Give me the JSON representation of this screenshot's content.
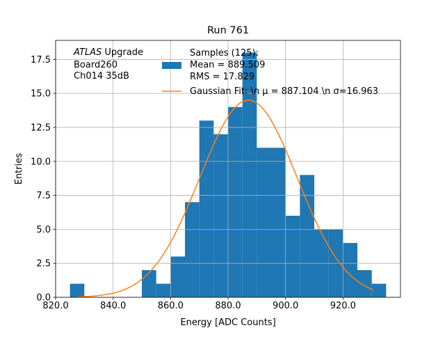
{
  "chart_data": {
    "type": "bar",
    "title": "Run 761",
    "xlabel": "Energy [ADC Counts]",
    "ylabel": "Entries",
    "xlim": [
      820,
      940
    ],
    "ylim": [
      0,
      18.9
    ],
    "grid": true,
    "bin_width": 5,
    "bins": [
      {
        "x0": 825,
        "value": 1
      },
      {
        "x0": 850,
        "value": 2
      },
      {
        "x0": 855,
        "value": 1
      },
      {
        "x0": 860,
        "value": 3
      },
      {
        "x0": 865,
        "value": 7
      },
      {
        "x0": 870,
        "value": 13
      },
      {
        "x0": 875,
        "value": 12
      },
      {
        "x0": 880,
        "value": 14
      },
      {
        "x0": 885,
        "value": 18
      },
      {
        "x0": 890,
        "value": 11
      },
      {
        "x0": 895,
        "value": 11
      },
      {
        "x0": 900,
        "value": 6
      },
      {
        "x0": 905,
        "value": 9
      },
      {
        "x0": 910,
        "value": 5
      },
      {
        "x0": 915,
        "value": 5
      },
      {
        "x0": 920,
        "value": 4
      },
      {
        "x0": 925,
        "value": 2
      },
      {
        "x0": 930,
        "value": 1
      }
    ],
    "x_ticks": [
      {
        "value": 820,
        "label": "820.0"
      },
      {
        "value": 840,
        "label": "840.0"
      },
      {
        "value": 860,
        "label": "860.0"
      },
      {
        "value": 880,
        "label": "880.0"
      },
      {
        "value": 900,
        "label": "900.0"
      },
      {
        "value": 920,
        "label": "920.0"
      }
    ],
    "y_ticks": [
      {
        "value": 0,
        "label": "0.0"
      },
      {
        "value": 2.5,
        "label": "2.5"
      },
      {
        "value": 5,
        "label": "5.0"
      },
      {
        "value": 7.5,
        "label": "7.5"
      },
      {
        "value": 10,
        "label": "10.0"
      },
      {
        "value": 12.5,
        "label": "12.5"
      },
      {
        "value": 15,
        "label": "15.0"
      },
      {
        "value": 17.5,
        "label": "17.5"
      }
    ],
    "fit": {
      "type": "gaussian",
      "mu": 887.104,
      "sigma": 16.963,
      "amplitude": 14.5,
      "x_range": [
        827.5,
        930.5
      ]
    },
    "legend": {
      "placement": "top-right",
      "entries": [
        {
          "key": "histogram",
          "lines": [
            "Samples (125):",
            " Mean = 889.509",
            " RMS = 17.829"
          ]
        },
        {
          "key": "fit",
          "lines": [
            "Gaussian Fit: \\n μ = 887.104 \\n σ=16.963"
          ]
        }
      ]
    },
    "annotation": {
      "italic": "ATLAS",
      "rest": " Upgrade",
      "lines": [
        " Board260",
        " Ch014 35dB"
      ]
    }
  },
  "colors": {
    "bar": "#1f77b4",
    "fit": "#ff7f0e",
    "grid": "#b0b0b0",
    "axis": "#000000"
  }
}
